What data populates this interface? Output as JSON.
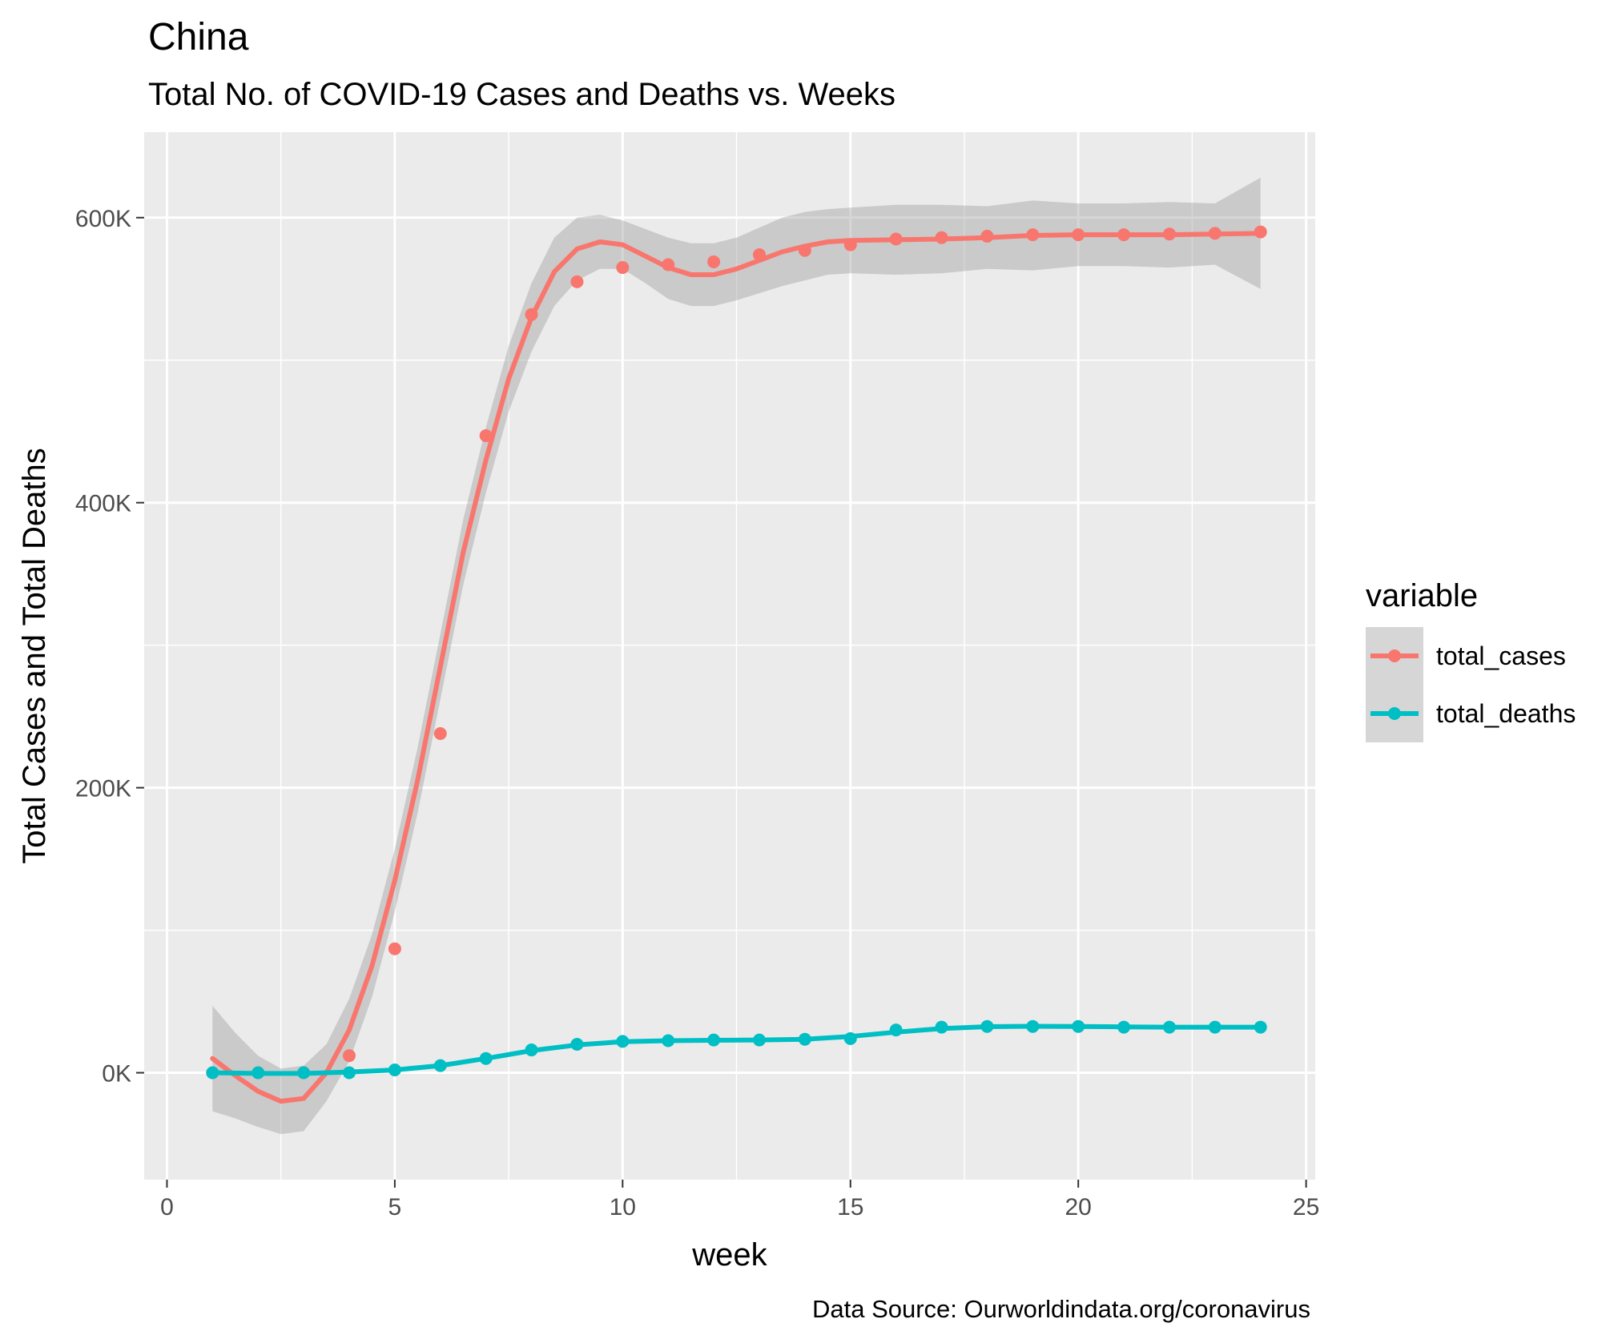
{
  "chart_data": {
    "type": "line",
    "title": "China",
    "subtitle": "Total No. of COVID-19 Cases and Deaths vs. Weeks",
    "xlabel": "week",
    "ylabel": "Total Cases and Total Deaths",
    "caption": "Data Source: Ourworldindata.org/coronavirus",
    "xlim": [
      -0.5,
      25.2
    ],
    "ylim": [
      -75000,
      660000
    ],
    "x_ticks": [
      0,
      5,
      10,
      15,
      20,
      25
    ],
    "x_tick_labels": [
      "0",
      "5",
      "10",
      "15",
      "20",
      "25"
    ],
    "y_ticks": [
      0,
      200000,
      400000,
      600000
    ],
    "y_tick_labels": [
      "0K",
      "200K",
      "400K",
      "600K"
    ],
    "grid": true,
    "background": "#ebebeb",
    "legend": {
      "title": "variable",
      "position": "right"
    },
    "colors": {
      "total_cases": "#f8766d",
      "total_deaths": "#00bfc4",
      "ribbon": "#999999"
    },
    "series": [
      {
        "name": "total_cases",
        "points": [
          [
            1,
            0
          ],
          [
            2,
            0
          ],
          [
            3,
            0
          ],
          [
            4,
            12000
          ],
          [
            5,
            87000
          ],
          [
            6,
            238000
          ],
          [
            7,
            447000
          ],
          [
            8,
            532000
          ],
          [
            9,
            555000
          ],
          [
            10,
            565000
          ],
          [
            11,
            567000
          ],
          [
            12,
            569000
          ],
          [
            13,
            574000
          ],
          [
            14,
            577000
          ],
          [
            15,
            581000
          ],
          [
            16,
            585000
          ],
          [
            17,
            586000
          ],
          [
            18,
            587000
          ],
          [
            19,
            588000
          ],
          [
            20,
            588000
          ],
          [
            21,
            588000
          ],
          [
            22,
            588500
          ],
          [
            23,
            589000
          ],
          [
            24,
            590000
          ]
        ],
        "smooth": [
          [
            1,
            10000
          ],
          [
            1.5,
            -2000
          ],
          [
            2,
            -13000
          ],
          [
            2.5,
            -20000
          ],
          [
            3,
            -18000
          ],
          [
            3.5,
            0
          ],
          [
            4,
            30000
          ],
          [
            4.5,
            75000
          ],
          [
            5,
            135000
          ],
          [
            5.5,
            205000
          ],
          [
            6,
            285000
          ],
          [
            6.5,
            365000
          ],
          [
            7,
            430000
          ],
          [
            7.5,
            487000
          ],
          [
            8,
            530000
          ],
          [
            8.5,
            562000
          ],
          [
            9,
            578000
          ],
          [
            9.5,
            583000
          ],
          [
            10,
            581000
          ],
          [
            10.5,
            573000
          ],
          [
            11,
            565000
          ],
          [
            11.5,
            560000
          ],
          [
            12,
            560000
          ],
          [
            12.5,
            564000
          ],
          [
            13,
            570000
          ],
          [
            13.5,
            576000
          ],
          [
            14,
            580000
          ],
          [
            14.5,
            583000
          ],
          [
            15,
            584000
          ],
          [
            16,
            584500
          ],
          [
            17,
            585000
          ],
          [
            18,
            586000
          ],
          [
            19,
            587500
          ],
          [
            20,
            588000
          ],
          [
            21,
            588000
          ],
          [
            22,
            588000
          ],
          [
            23,
            588500
          ],
          [
            24,
            589000
          ]
        ],
        "ribbon_upper": [
          [
            1,
            47000
          ],
          [
            1.5,
            28000
          ],
          [
            2,
            12000
          ],
          [
            2.5,
            3000
          ],
          [
            3,
            5000
          ],
          [
            3.5,
            20000
          ],
          [
            4,
            52000
          ],
          [
            4.5,
            97000
          ],
          [
            5,
            157000
          ],
          [
            5.5,
            228000
          ],
          [
            6,
            308000
          ],
          [
            6.5,
            388000
          ],
          [
            7,
            453000
          ],
          [
            7.5,
            510000
          ],
          [
            8,
            554000
          ],
          [
            8.5,
            586000
          ],
          [
            9,
            600000
          ],
          [
            9.5,
            602000
          ],
          [
            10,
            598000
          ],
          [
            10.5,
            592000
          ],
          [
            11,
            586000
          ],
          [
            11.5,
            582000
          ],
          [
            12,
            582000
          ],
          [
            12.5,
            586000
          ],
          [
            13,
            593000
          ],
          [
            13.5,
            600000
          ],
          [
            14,
            604000
          ],
          [
            14.5,
            606000
          ],
          [
            15,
            607000
          ],
          [
            16,
            609000
          ],
          [
            17,
            609000
          ],
          [
            18,
            608000
          ],
          [
            19,
            612000
          ],
          [
            20,
            610000
          ],
          [
            21,
            610000
          ],
          [
            22,
            611000
          ],
          [
            23,
            610000
          ],
          [
            24,
            628000
          ]
        ],
        "ribbon_lower": [
          [
            1,
            -27000
          ],
          [
            1.5,
            -32000
          ],
          [
            2,
            -38000
          ],
          [
            2.5,
            -43000
          ],
          [
            3,
            -41000
          ],
          [
            3.5,
            -20000
          ],
          [
            4,
            8000
          ],
          [
            4.5,
            53000
          ],
          [
            5,
            113000
          ],
          [
            5.5,
            182000
          ],
          [
            6,
            262000
          ],
          [
            6.5,
            342000
          ],
          [
            7,
            407000
          ],
          [
            7.5,
            464000
          ],
          [
            8,
            506000
          ],
          [
            8.5,
            538000
          ],
          [
            9,
            556000
          ],
          [
            9.5,
            564000
          ],
          [
            10,
            564000
          ],
          [
            10.5,
            554000
          ],
          [
            11,
            543000
          ],
          [
            11.5,
            538000
          ],
          [
            12,
            538000
          ],
          [
            12.5,
            542000
          ],
          [
            13,
            547000
          ],
          [
            13.5,
            552000
          ],
          [
            14,
            556000
          ],
          [
            14.5,
            560000
          ],
          [
            15,
            561000
          ],
          [
            16,
            560000
          ],
          [
            17,
            561000
          ],
          [
            18,
            564000
          ],
          [
            19,
            563000
          ],
          [
            20,
            566000
          ],
          [
            21,
            566000
          ],
          [
            22,
            565000
          ],
          [
            23,
            567000
          ],
          [
            24,
            550000
          ]
        ]
      },
      {
        "name": "total_deaths",
        "points": [
          [
            1,
            0
          ],
          [
            2,
            0
          ],
          [
            3,
            0
          ],
          [
            4,
            0
          ],
          [
            5,
            2000
          ],
          [
            6,
            5000
          ],
          [
            7,
            10000
          ],
          [
            8,
            16000
          ],
          [
            9,
            20000
          ],
          [
            10,
            22000
          ],
          [
            11,
            22500
          ],
          [
            12,
            23000
          ],
          [
            13,
            23000
          ],
          [
            14,
            23500
          ],
          [
            15,
            24000
          ],
          [
            16,
            30000
          ],
          [
            17,
            32000
          ],
          [
            18,
            32500
          ],
          [
            19,
            32500
          ],
          [
            20,
            32500
          ],
          [
            21,
            32000
          ],
          [
            22,
            32000
          ],
          [
            23,
            32000
          ],
          [
            24,
            32000
          ]
        ],
        "smooth": [
          [
            1,
            0
          ],
          [
            2,
            -500
          ],
          [
            3,
            -500
          ],
          [
            4,
            500
          ],
          [
            5,
            2000
          ],
          [
            6,
            5000
          ],
          [
            7,
            10000
          ],
          [
            8,
            15500
          ],
          [
            9,
            19500
          ],
          [
            10,
            21800
          ],
          [
            11,
            22500
          ],
          [
            12,
            22800
          ],
          [
            13,
            23000
          ],
          [
            14,
            23500
          ],
          [
            15,
            25500
          ],
          [
            16,
            28500
          ],
          [
            17,
            31000
          ],
          [
            18,
            32300
          ],
          [
            19,
            32600
          ],
          [
            20,
            32500
          ],
          [
            21,
            32200
          ],
          [
            22,
            32000
          ],
          [
            23,
            32000
          ],
          [
            24,
            32000
          ]
        ],
        "ribbon_upper": [],
        "ribbon_lower": []
      }
    ]
  }
}
